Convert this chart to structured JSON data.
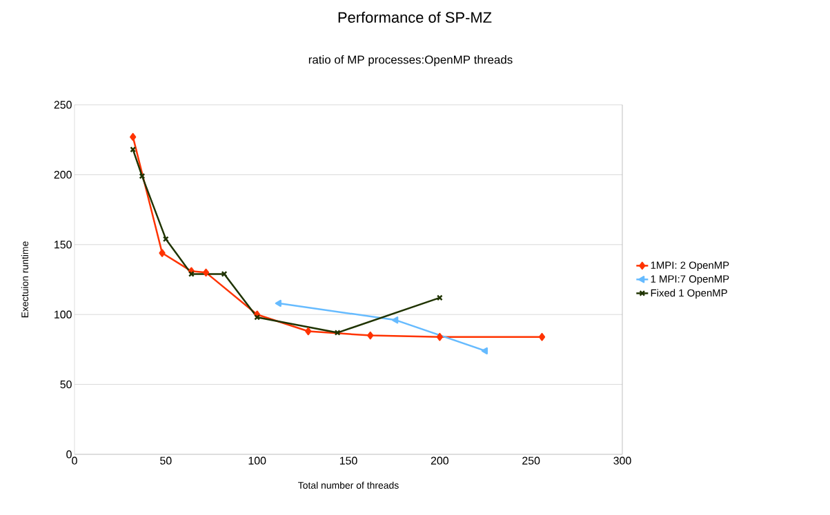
{
  "chart_data": {
    "type": "line",
    "title": "Performance of SP-MZ",
    "subtitle": "ratio of MP processes:OpenMP threads",
    "xlabel": "Total number of threads",
    "ylabel": "Exectuion runtime",
    "xlim": [
      0,
      300
    ],
    "xticks": [
      0,
      50,
      100,
      150,
      200,
      250,
      300
    ],
    "ylim": [
      0,
      250
    ],
    "yticks": [
      0,
      50,
      100,
      150,
      200,
      250
    ],
    "grid": "y",
    "legend": "right",
    "series": [
      {
        "name": "1MPI: 2 OpenMP",
        "color": "#ff3300",
        "marker": "diamond",
        "x": [
          32,
          48,
          64,
          72,
          100,
          128,
          162,
          200,
          256
        ],
        "values": [
          227,
          144,
          131,
          130,
          100,
          88,
          85,
          84,
          84
        ]
      },
      {
        "name": "1 MPI:7 OpenMP",
        "color": "#66bbff",
        "marker": "triangle",
        "x": [
          112,
          176,
          225
        ],
        "values": [
          108,
          96,
          74
        ]
      },
      {
        "name": "Fixed 1 OpenMP",
        "color": "#1f3300",
        "marker": "cross",
        "x": [
          32,
          37,
          50,
          64,
          82,
          100,
          144,
          200
        ],
        "values": [
          218,
          199,
          154,
          129,
          129,
          98,
          87,
          112
        ]
      }
    ]
  }
}
